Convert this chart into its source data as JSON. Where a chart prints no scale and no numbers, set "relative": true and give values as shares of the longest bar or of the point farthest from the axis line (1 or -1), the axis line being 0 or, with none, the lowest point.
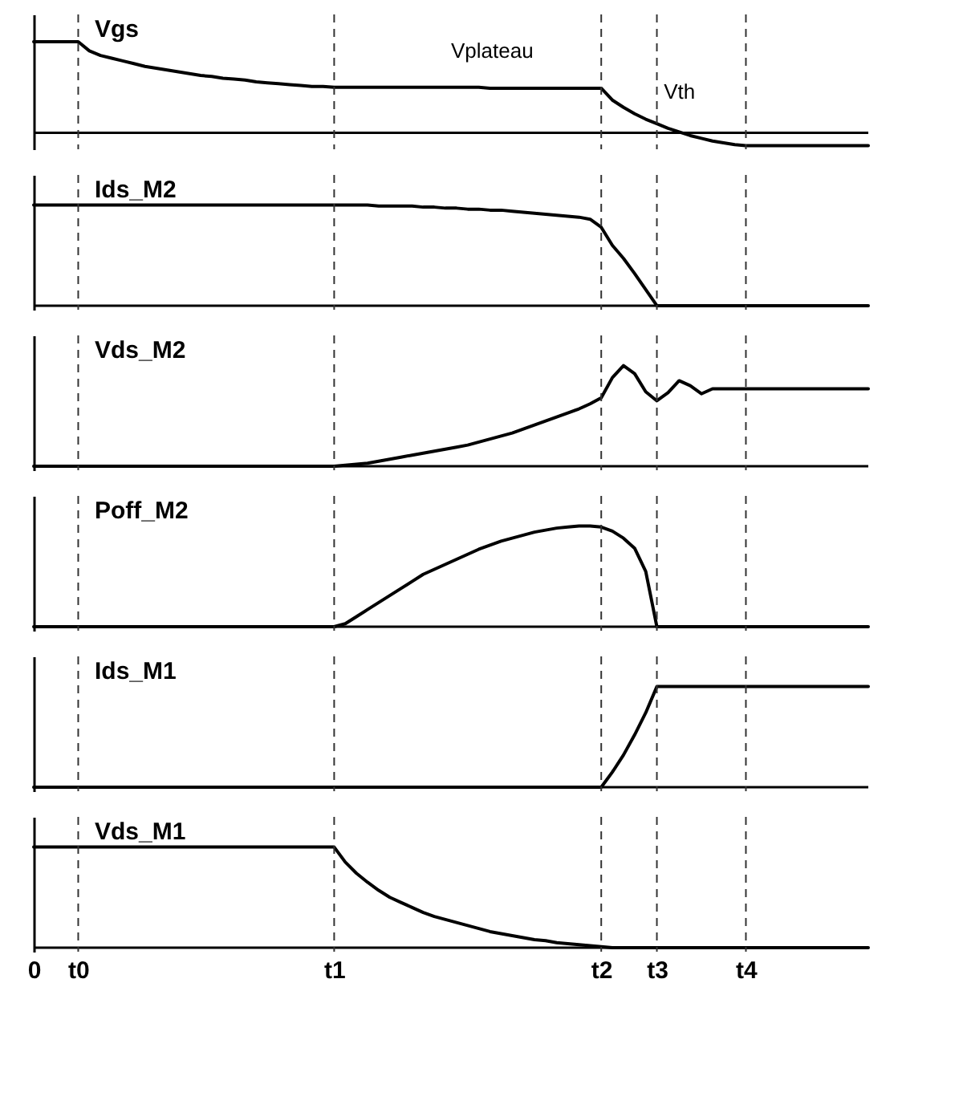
{
  "chart_data": [
    {
      "type": "line",
      "relative": true,
      "tick_labels": false,
      "line_style": "solid",
      "categories": [
        "0",
        null,
        null,
        null,
        "t0",
        null,
        null,
        null,
        null,
        null,
        null,
        null,
        null,
        null,
        null,
        null,
        null,
        null,
        null,
        null,
        null,
        null,
        null,
        null,
        null,
        null,
        null,
        "t1",
        null,
        null,
        null,
        null,
        null,
        null,
        null,
        null,
        null,
        null,
        null,
        null,
        null,
        null,
        null,
        null,
        null,
        null,
        null,
        null,
        null,
        null,
        null,
        "t2",
        null,
        null,
        null,
        null,
        "t3",
        null,
        null,
        null,
        null,
        null,
        null,
        null,
        "t4",
        null,
        null,
        null,
        null,
        null,
        null,
        null,
        null,
        null,
        null,
        null
      ],
      "series": [
        {
          "name": "Vgs",
          "color": "#000000",
          "values": [
            1,
            1,
            1,
            1,
            1,
            0.9,
            0.85,
            0.82,
            0.79,
            0.76,
            0.73,
            0.71,
            0.69,
            0.67,
            0.65,
            0.63,
            0.62,
            0.6,
            0.59,
            0.58,
            0.56,
            0.55,
            0.54,
            0.53,
            0.52,
            0.51,
            0.51,
            0.5,
            0.5,
            0.5,
            0.5,
            0.5,
            0.5,
            0.5,
            0.5,
            0.5,
            0.5,
            0.5,
            0.5,
            0.5,
            0.5,
            0.49,
            0.49,
            0.49,
            0.49,
            0.49,
            0.49,
            0.49,
            0.49,
            0.49,
            0.49,
            0.49,
            0.36,
            0.28,
            0.21,
            0.15,
            0.1,
            0.05,
            0.01,
            -0.03,
            -0.06,
            -0.09,
            -0.11,
            -0.13,
            -0.14,
            -0.14,
            -0.14,
            -0.14,
            -0.14,
            -0.14,
            -0.14,
            -0.14,
            -0.14,
            -0.14,
            -0.14,
            -0.14
          ]
        }
      ],
      "annotations": [
        "Vplateau",
        "Vth"
      ],
      "ref_lines": [
        {
          "axis": "x",
          "value": "t0",
          "line_style": "dashed"
        },
        {
          "axis": "x",
          "value": "t1",
          "line_style": "dashed"
        },
        {
          "axis": "x",
          "value": "t2",
          "line_style": "dashed"
        },
        {
          "axis": "x",
          "value": "t3",
          "line_style": "dashed"
        },
        {
          "axis": "x",
          "value": "t4",
          "line_style": "dashed"
        }
      ]
    },
    {
      "type": "line",
      "relative": true,
      "tick_labels": false,
      "line_style": "solid",
      "categories": [
        "0",
        null,
        null,
        null,
        "t0",
        null,
        null,
        null,
        null,
        null,
        null,
        null,
        null,
        null,
        null,
        null,
        null,
        null,
        null,
        null,
        null,
        null,
        null,
        null,
        null,
        null,
        null,
        "t1",
        null,
        null,
        null,
        null,
        null,
        null,
        null,
        null,
        null,
        null,
        null,
        null,
        null,
        null,
        null,
        null,
        null,
        null,
        null,
        null,
        null,
        null,
        null,
        "t2",
        null,
        null,
        null,
        null,
        "t3",
        null,
        null,
        null,
        null,
        null,
        null,
        null,
        "t4",
        null,
        null,
        null,
        null,
        null,
        null,
        null,
        null,
        null,
        null,
        null
      ],
      "series": [
        {
          "name": "Ids_M2",
          "color": "#000000",
          "values": [
            1,
            1,
            1,
            1,
            1,
            1,
            1,
            1,
            1,
            1,
            1,
            1,
            1,
            1,
            1,
            1,
            1,
            1,
            1,
            1,
            1,
            1,
            1,
            1,
            1,
            1,
            1,
            1,
            1,
            1,
            1,
            0.99,
            0.99,
            0.99,
            0.99,
            0.98,
            0.98,
            0.97,
            0.97,
            0.96,
            0.96,
            0.95,
            0.95,
            0.94,
            0.93,
            0.92,
            0.91,
            0.9,
            0.89,
            0.88,
            0.86,
            0.78,
            0.6,
            0.47,
            0.32,
            0.16,
            0,
            0,
            0,
            0,
            0,
            0,
            0,
            0,
            0,
            0,
            0,
            0,
            0,
            0,
            0,
            0,
            0,
            0,
            0,
            0
          ]
        }
      ],
      "ref_lines": [
        {
          "axis": "x",
          "value": "t0",
          "line_style": "dashed"
        },
        {
          "axis": "x",
          "value": "t1",
          "line_style": "dashed"
        },
        {
          "axis": "x",
          "value": "t2",
          "line_style": "dashed"
        },
        {
          "axis": "x",
          "value": "t3",
          "line_style": "dashed"
        },
        {
          "axis": "x",
          "value": "t4",
          "line_style": "dashed"
        }
      ]
    },
    {
      "type": "line",
      "relative": true,
      "tick_labels": false,
      "line_style": "solid",
      "categories": [
        "0",
        null,
        null,
        null,
        "t0",
        null,
        null,
        null,
        null,
        null,
        null,
        null,
        null,
        null,
        null,
        null,
        null,
        null,
        null,
        null,
        null,
        null,
        null,
        null,
        null,
        null,
        null,
        "t1",
        null,
        null,
        null,
        null,
        null,
        null,
        null,
        null,
        null,
        null,
        null,
        null,
        null,
        null,
        null,
        null,
        null,
        null,
        null,
        null,
        null,
        null,
        null,
        "t2",
        null,
        null,
        null,
        null,
        "t3",
        null,
        null,
        null,
        null,
        null,
        null,
        null,
        "t4",
        null,
        null,
        null,
        null,
        null,
        null,
        null,
        null,
        null,
        null,
        null
      ],
      "series": [
        {
          "name": "Vds_M2",
          "color": "#000000",
          "values": [
            0,
            0,
            0,
            0,
            0,
            0,
            0,
            0,
            0,
            0,
            0,
            0,
            0,
            0,
            0,
            0,
            0,
            0,
            0,
            0,
            0,
            0,
            0,
            0,
            0,
            0,
            0,
            0,
            0.01,
            0.02,
            0.03,
            0.05,
            0.07,
            0.09,
            0.11,
            0.13,
            0.15,
            0.17,
            0.19,
            0.21,
            0.24,
            0.27,
            0.3,
            0.33,
            0.37,
            0.41,
            0.45,
            0.49,
            0.53,
            0.57,
            0.62,
            0.68,
            0.88,
            1,
            0.92,
            0.74,
            0.65,
            0.73,
            0.85,
            0.8,
            0.72,
            0.77,
            0.77,
            0.77,
            0.77,
            0.77,
            0.77,
            0.77,
            0.77,
            0.77,
            0.77,
            0.77,
            0.77,
            0.77,
            0.77,
            0.77
          ]
        }
      ],
      "ref_lines": [
        {
          "axis": "x",
          "value": "t0",
          "line_style": "dashed"
        },
        {
          "axis": "x",
          "value": "t1",
          "line_style": "dashed"
        },
        {
          "axis": "x",
          "value": "t2",
          "line_style": "dashed"
        },
        {
          "axis": "x",
          "value": "t3",
          "line_style": "dashed"
        },
        {
          "axis": "x",
          "value": "t4",
          "line_style": "dashed"
        }
      ]
    },
    {
      "type": "line",
      "relative": true,
      "tick_labels": false,
      "line_style": "solid",
      "categories": [
        "0",
        null,
        null,
        null,
        "t0",
        null,
        null,
        null,
        null,
        null,
        null,
        null,
        null,
        null,
        null,
        null,
        null,
        null,
        null,
        null,
        null,
        null,
        null,
        null,
        null,
        null,
        null,
        "t1",
        null,
        null,
        null,
        null,
        null,
        null,
        null,
        null,
        null,
        null,
        null,
        null,
        null,
        null,
        null,
        null,
        null,
        null,
        null,
        null,
        null,
        null,
        null,
        "t2",
        null,
        null,
        null,
        null,
        "t3",
        null,
        null,
        null,
        null,
        null,
        null,
        null,
        "t4",
        null,
        null,
        null,
        null,
        null,
        null,
        null,
        null,
        null,
        null,
        null
      ],
      "series": [
        {
          "name": "Poff_M2",
          "color": "#000000",
          "values": [
            0,
            0,
            0,
            0,
            0,
            0,
            0,
            0,
            0,
            0,
            0,
            0,
            0,
            0,
            0,
            0,
            0,
            0,
            0,
            0,
            0,
            0,
            0,
            0,
            0,
            0,
            0,
            0,
            0.03,
            0.1,
            0.17,
            0.24,
            0.31,
            0.38,
            0.45,
            0.52,
            0.57,
            0.62,
            0.67,
            0.72,
            0.77,
            0.81,
            0.85,
            0.88,
            0.91,
            0.94,
            0.96,
            0.98,
            0.99,
            1,
            1,
            0.99,
            0.95,
            0.88,
            0.78,
            0.55,
            0,
            0,
            0,
            0,
            0,
            0,
            0,
            0,
            0,
            0,
            0,
            0,
            0,
            0,
            0,
            0,
            0,
            0,
            0,
            0
          ]
        }
      ],
      "ref_lines": [
        {
          "axis": "x",
          "value": "t0",
          "line_style": "dashed"
        },
        {
          "axis": "x",
          "value": "t1",
          "line_style": "dashed"
        },
        {
          "axis": "x",
          "value": "t2",
          "line_style": "dashed"
        },
        {
          "axis": "x",
          "value": "t3",
          "line_style": "dashed"
        },
        {
          "axis": "x",
          "value": "t4",
          "line_style": "dashed"
        }
      ]
    },
    {
      "type": "line",
      "relative": true,
      "tick_labels": false,
      "line_style": "solid",
      "categories": [
        "0",
        null,
        null,
        null,
        "t0",
        null,
        null,
        null,
        null,
        null,
        null,
        null,
        null,
        null,
        null,
        null,
        null,
        null,
        null,
        null,
        null,
        null,
        null,
        null,
        null,
        null,
        null,
        "t1",
        null,
        null,
        null,
        null,
        null,
        null,
        null,
        null,
        null,
        null,
        null,
        null,
        null,
        null,
        null,
        null,
        null,
        null,
        null,
        null,
        null,
        null,
        null,
        "t2",
        null,
        null,
        null,
        null,
        "t3",
        null,
        null,
        null,
        null,
        null,
        null,
        null,
        "t4",
        null,
        null,
        null,
        null,
        null,
        null,
        null,
        null,
        null,
        null,
        null
      ],
      "series": [
        {
          "name": "Ids_M1",
          "color": "#000000",
          "values": [
            0,
            0,
            0,
            0,
            0,
            0,
            0,
            0,
            0,
            0,
            0,
            0,
            0,
            0,
            0,
            0,
            0,
            0,
            0,
            0,
            0,
            0,
            0,
            0,
            0,
            0,
            0,
            0,
            0,
            0,
            0,
            0,
            0,
            0,
            0,
            0,
            0,
            0,
            0,
            0,
            0,
            0,
            0,
            0,
            0,
            0,
            0,
            0,
            0,
            0,
            0,
            0,
            0.15,
            0.32,
            0.52,
            0.74,
            1,
            1,
            1,
            1,
            1,
            1,
            1,
            1,
            1,
            1,
            1,
            1,
            1,
            1,
            1,
            1,
            1,
            1,
            1,
            1
          ]
        }
      ],
      "ref_lines": [
        {
          "axis": "x",
          "value": "t0",
          "line_style": "dashed"
        },
        {
          "axis": "x",
          "value": "t1",
          "line_style": "dashed"
        },
        {
          "axis": "x",
          "value": "t2",
          "line_style": "dashed"
        },
        {
          "axis": "x",
          "value": "t3",
          "line_style": "dashed"
        },
        {
          "axis": "x",
          "value": "t4",
          "line_style": "dashed"
        }
      ]
    },
    {
      "type": "line",
      "relative": true,
      "line_style": "solid",
      "categories": [
        "0",
        null,
        null,
        null,
        "t0",
        null,
        null,
        null,
        null,
        null,
        null,
        null,
        null,
        null,
        null,
        null,
        null,
        null,
        null,
        null,
        null,
        null,
        null,
        null,
        null,
        null,
        null,
        "t1",
        null,
        null,
        null,
        null,
        null,
        null,
        null,
        null,
        null,
        null,
        null,
        null,
        null,
        null,
        null,
        null,
        null,
        null,
        null,
        null,
        null,
        null,
        null,
        "t2",
        null,
        null,
        null,
        null,
        "t3",
        null,
        null,
        null,
        null,
        null,
        null,
        null,
        "t4",
        null,
        null,
        null,
        null,
        null,
        null,
        null,
        null,
        null,
        null,
        null
      ],
      "series": [
        {
          "name": "Vds_M1",
          "color": "#000000",
          "values": [
            1,
            1,
            1,
            1,
            1,
            1,
            1,
            1,
            1,
            1,
            1,
            1,
            1,
            1,
            1,
            1,
            1,
            1,
            1,
            1,
            1,
            1,
            1,
            1,
            1,
            1,
            1,
            1,
            0.85,
            0.74,
            0.65,
            0.57,
            0.5,
            0.45,
            0.4,
            0.35,
            0.31,
            0.28,
            0.25,
            0.22,
            0.19,
            0.16,
            0.14,
            0.12,
            0.1,
            0.08,
            0.07,
            0.05,
            0.04,
            0.03,
            0.02,
            0.01,
            0,
            0,
            0,
            0,
            0,
            0,
            0,
            0,
            0,
            0,
            0,
            0,
            0,
            0,
            0,
            0,
            0,
            0,
            0,
            0,
            0,
            0,
            0,
            0
          ]
        }
      ],
      "ref_lines": [
        {
          "axis": "x",
          "value": "t0",
          "line_style": "dashed"
        },
        {
          "axis": "x",
          "value": "t1",
          "line_style": "dashed"
        },
        {
          "axis": "x",
          "value": "t2",
          "line_style": "dashed"
        },
        {
          "axis": "x",
          "value": "t3",
          "line_style": "dashed"
        },
        {
          "axis": "x",
          "value": "t4",
          "line_style": "dashed"
        }
      ]
    }
  ]
}
